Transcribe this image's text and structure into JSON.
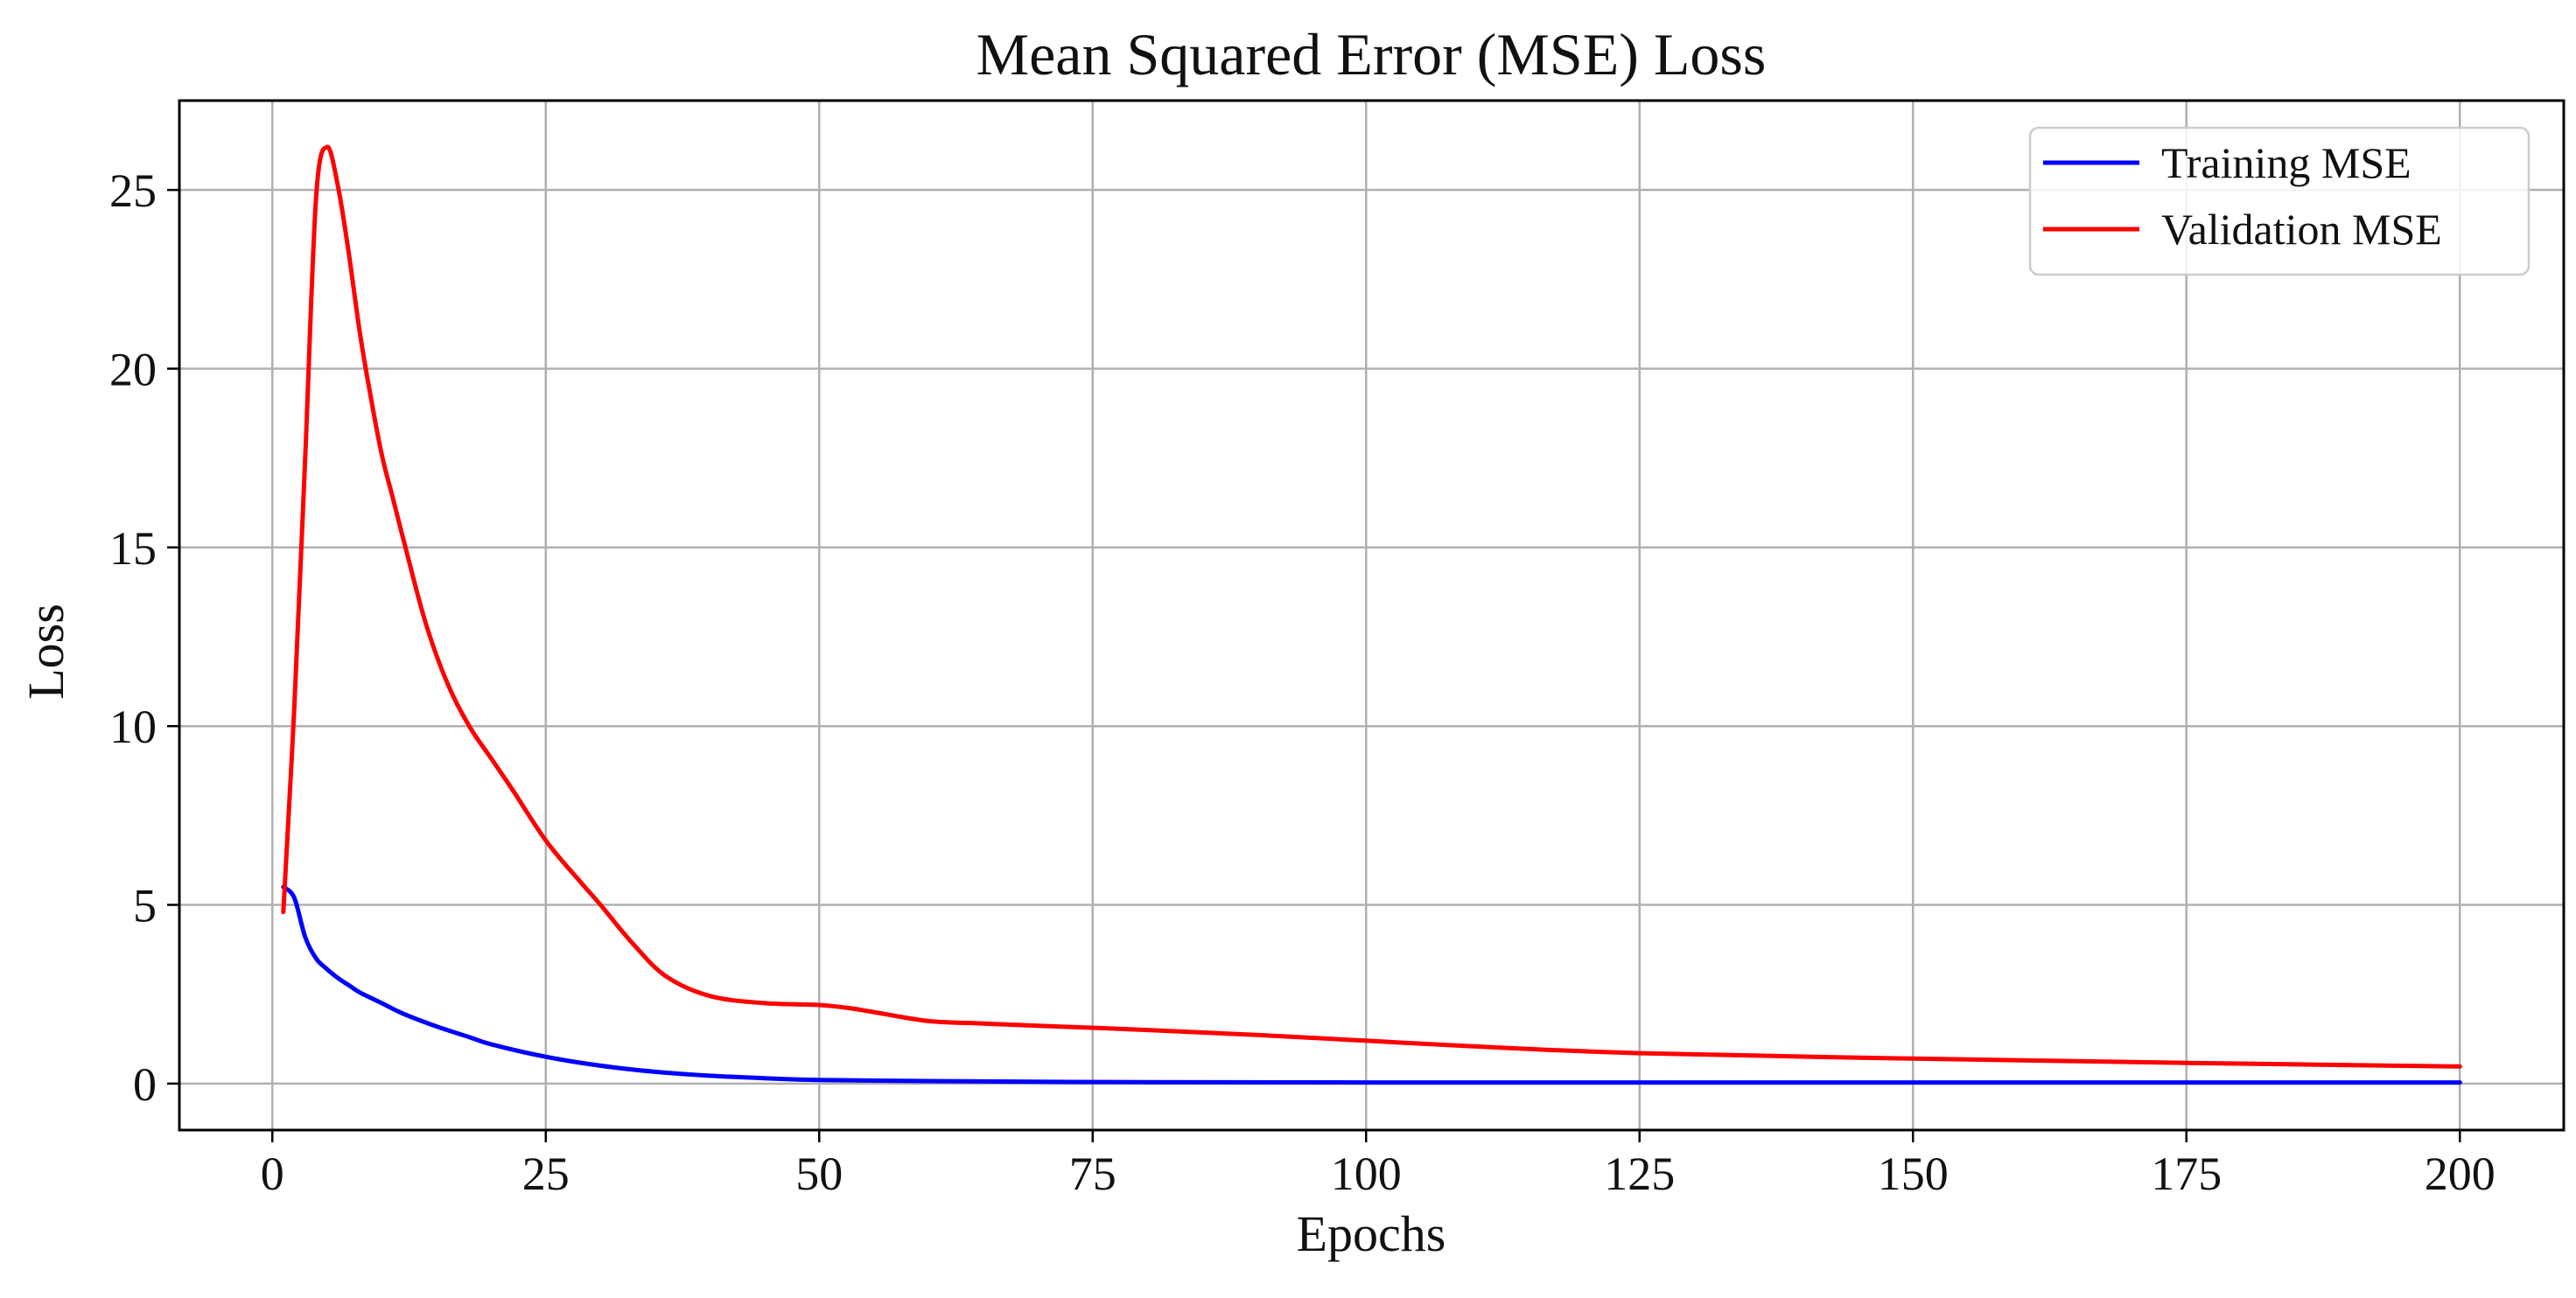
{
  "chart_data": {
    "type": "line",
    "title": "Mean Squared Error (MSE) Loss",
    "xlabel": "Epochs",
    "ylabel": "Loss",
    "xlim": [
      -8.5,
      209.5
    ],
    "ylim": [
      -1.3,
      27.5
    ],
    "xticks": [
      0,
      25,
      50,
      75,
      100,
      125,
      150,
      175,
      200
    ],
    "yticks": [
      0,
      5,
      10,
      15,
      20,
      25
    ],
    "grid": true,
    "legend_position": "top-right",
    "series": [
      {
        "name": "Training MSE",
        "color": "#0000ff",
        "x": [
          1,
          2,
          3,
          4,
          5,
          6,
          7,
          8,
          10,
          12,
          15,
          18,
          20,
          25,
          30,
          35,
          40,
          45,
          50,
          60,
          70,
          80,
          100,
          125,
          150,
          175,
          200
        ],
        "y": [
          5.5,
          5.2,
          4.1,
          3.5,
          3.2,
          2.95,
          2.75,
          2.55,
          2.25,
          1.95,
          1.6,
          1.3,
          1.1,
          0.75,
          0.5,
          0.33,
          0.22,
          0.15,
          0.1,
          0.07,
          0.05,
          0.04,
          0.03,
          0.03,
          0.03,
          0.03,
          0.03
        ]
      },
      {
        "name": "Validation MSE",
        "color": "#ff0000",
        "x": [
          1,
          2,
          3,
          4,
          5,
          6,
          7,
          8,
          9,
          10,
          11,
          12,
          14,
          16,
          18,
          20,
          22,
          25,
          28,
          30,
          33,
          36,
          40,
          45,
          50,
          53,
          55,
          60,
          65,
          70,
          80,
          90,
          100,
          110,
          125,
          150,
          175,
          200
        ],
        "y": [
          4.8,
          10.5,
          17.5,
          24.8,
          26.2,
          25.1,
          23.2,
          21.0,
          19.2,
          17.6,
          16.4,
          15.2,
          12.9,
          11.2,
          10.0,
          9.1,
          8.2,
          6.8,
          5.7,
          5.0,
          3.9,
          3.0,
          2.45,
          2.25,
          2.2,
          2.1,
          2.0,
          1.75,
          1.68,
          1.62,
          1.5,
          1.36,
          1.2,
          1.04,
          0.85,
          0.7,
          0.58,
          0.48
        ]
      }
    ]
  }
}
